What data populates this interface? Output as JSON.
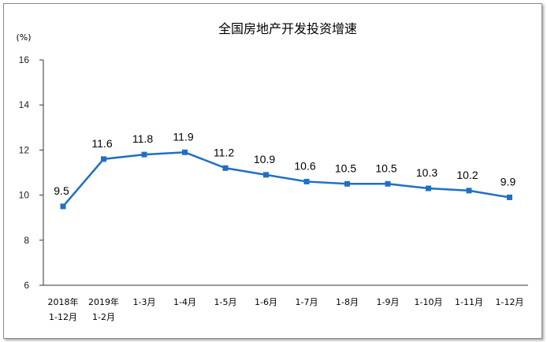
{
  "chart_data": {
    "type": "line",
    "title": "全国房地产开发投资增速",
    "unit_label": "(%)",
    "categories": [
      [
        "2018年",
        "1-12月"
      ],
      [
        "2019年",
        "1-2月"
      ],
      [
        "1-3月"
      ],
      [
        "1-4月"
      ],
      [
        "1-5月"
      ],
      [
        "1-6月"
      ],
      [
        "1-7月"
      ],
      [
        "1-8月"
      ],
      [
        "1-9月"
      ],
      [
        "1-10月"
      ],
      [
        "1-11月"
      ],
      [
        "1-12月"
      ]
    ],
    "values": [
      9.5,
      11.6,
      11.8,
      11.9,
      11.2,
      10.9,
      10.6,
      10.5,
      10.5,
      10.3,
      10.2,
      9.9
    ],
    "value_labels": [
      "9.5",
      "11.6",
      "11.8",
      "11.9",
      "11.2",
      "10.9",
      "10.6",
      "10.5",
      "10.5",
      "10.3",
      "10.2",
      "9.9"
    ],
    "y_ticks": [
      "6",
      "8",
      "10",
      "12",
      "14",
      "16"
    ],
    "ylim": [
      6,
      16
    ],
    "line_color": "#1f6fc5",
    "grid": false,
    "legend": "none"
  }
}
